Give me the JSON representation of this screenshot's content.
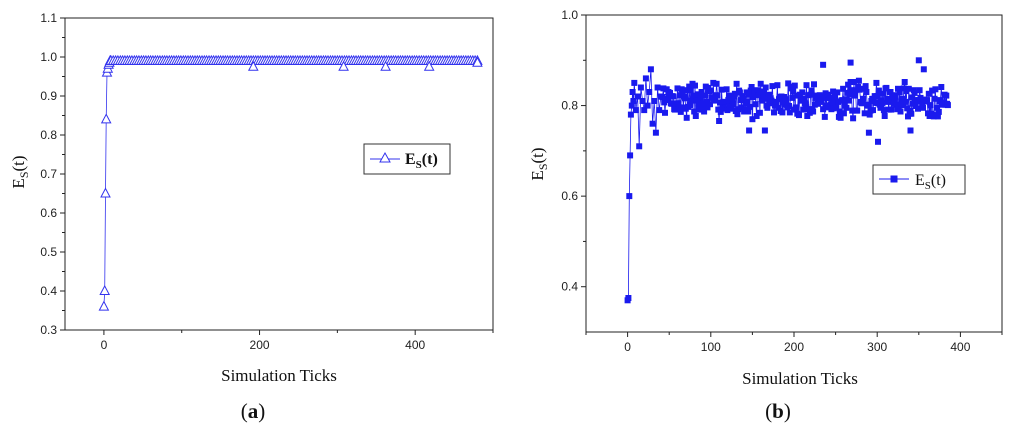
{
  "chart_data": [
    {
      "type": "scatter",
      "panel_label": "a",
      "xlabel": "Simulation Ticks",
      "ylabel": "E",
      "ylabel_sub": "S",
      "ylabel_suffix": "(t)",
      "xlim": [
        -50,
        500
      ],
      "ylim": [
        0.3,
        1.1
      ],
      "xticks": [
        0,
        200,
        400
      ],
      "yticks": [
        0.3,
        0.4,
        0.5,
        0.6,
        0.7,
        0.8,
        0.9,
        1.0,
        1.1
      ],
      "ytick_labels": [
        "0.3",
        "0.4",
        "0.5",
        "0.6",
        "0.7",
        "0.8",
        "0.9",
        "1.0",
        "1.1"
      ],
      "grid": false,
      "legend": {
        "position": "right",
        "label": "E",
        "label_sub": "S",
        "label_suffix": "(t)",
        "bold": true
      },
      "series": [
        {
          "marker": "open-triangle",
          "color": "#3333ee",
          "points": [
            [
              0,
              0.36
            ],
            [
              1,
              0.4
            ],
            [
              2,
              0.65
            ],
            [
              3,
              0.84
            ],
            [
              4,
              0.96
            ],
            [
              5,
              0.97
            ],
            [
              6,
              0.98
            ],
            [
              7,
              0.985
            ],
            [
              8,
              0.99
            ]
          ],
          "plateau": {
            "from": 9,
            "to": 480,
            "step": 3,
            "y": 0.99
          },
          "extra_points": [
            [
              192,
              0.975
            ],
            [
              308,
              0.975
            ],
            [
              362,
              0.975
            ],
            [
              418,
              0.975
            ],
            [
              480,
              0.985
            ]
          ]
        }
      ]
    },
    {
      "type": "scatter",
      "panel_label": "b",
      "xlabel": "Simulation Ticks",
      "ylabel": "E",
      "ylabel_sub": "S",
      "ylabel_suffix": "(t)",
      "xlim": [
        -50,
        450
      ],
      "ylim": [
        0.3,
        1.0
      ],
      "xticks": [
        0,
        100,
        200,
        300,
        400
      ],
      "yticks": [
        0.4,
        0.6,
        0.8,
        1.0
      ],
      "ytick_labels": [
        "0.4",
        "0.6",
        "0.8",
        "1.0"
      ],
      "grid": false,
      "legend": {
        "position": "right",
        "label": "E",
        "label_sub": "S",
        "label_suffix": "(t)",
        "bold": false
      },
      "series": [
        {
          "marker": "filled-square",
          "color": "#1a1aee",
          "points": [
            [
              0,
              0.37
            ],
            [
              1,
              0.375
            ],
            [
              2,
              0.6
            ],
            [
              3,
              0.69
            ],
            [
              4,
              0.78
            ],
            [
              5,
              0.8
            ],
            [
              6,
              0.83
            ],
            [
              7,
              0.81
            ],
            [
              8,
              0.85
            ],
            [
              10,
              0.79
            ],
            [
              12,
              0.82
            ],
            [
              14,
              0.71
            ],
            [
              16,
              0.84
            ],
            [
              18,
              0.81
            ],
            [
              20,
              0.79
            ],
            [
              22,
              0.86
            ],
            [
              24,
              0.8
            ],
            [
              26,
              0.83
            ],
            [
              28,
              0.88
            ],
            [
              30,
              0.76
            ],
            [
              32,
              0.81
            ],
            [
              34,
              0.74
            ],
            [
              36,
              0.84
            ],
            [
              38,
              0.79
            ],
            [
              40,
              0.82
            ]
          ],
          "noise": {
            "from": 42,
            "to": 385,
            "step": 1,
            "center": 0.812,
            "amplitude": 0.048,
            "seed": 7
          },
          "outliers": [
            [
              146,
              0.745
            ],
            [
              165,
              0.745
            ],
            [
              235,
              0.89
            ],
            [
              268,
              0.895
            ],
            [
              290,
              0.74
            ],
            [
              301,
              0.72
            ],
            [
              340,
              0.745
            ],
            [
              350,
              0.9
            ],
            [
              356,
              0.88
            ]
          ]
        }
      ]
    }
  ]
}
